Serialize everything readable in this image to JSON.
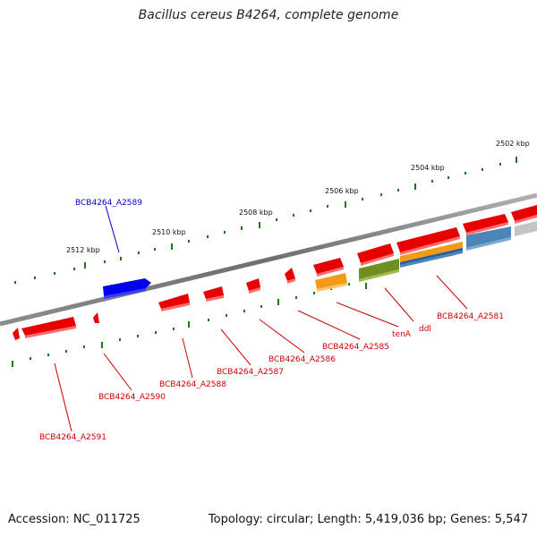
{
  "title": "Bacillus cereus B4264, complete genome",
  "footer": {
    "accession": "Accession: NC_011725",
    "stats": "Topology: circular; Length: 5,419,036 bp; Genes: 5,547"
  },
  "ticks": [
    "2502 kbp",
    "2504 kbp",
    "2506 kbp",
    "2508 kbp",
    "2510 kbp",
    "2512 kbp"
  ],
  "genes": {
    "upper": [
      "BCB4264_A2589"
    ],
    "lower": [
      "BCB4264_A2581",
      "ddl",
      "tenA",
      "BCB4264_A2585",
      "BCB4264_A2586",
      "BCB4264_A2587",
      "BCB4264_A2588",
      "BCB4264_A2590",
      "BCB4264_A2591"
    ]
  },
  "colors": {
    "backbone": "#7a7a7a",
    "forward_gene": "#0000ee",
    "reverse_gene": "#ee0000",
    "label_forward": "#0000cc",
    "label_reverse": "#cc0000",
    "tick": "#1a7a1a",
    "feature_orange": "#f39a16",
    "feature_green": "#6e8f22",
    "feature_blue": "#4a86b8",
    "feature_grey": "#c4c4c4"
  }
}
